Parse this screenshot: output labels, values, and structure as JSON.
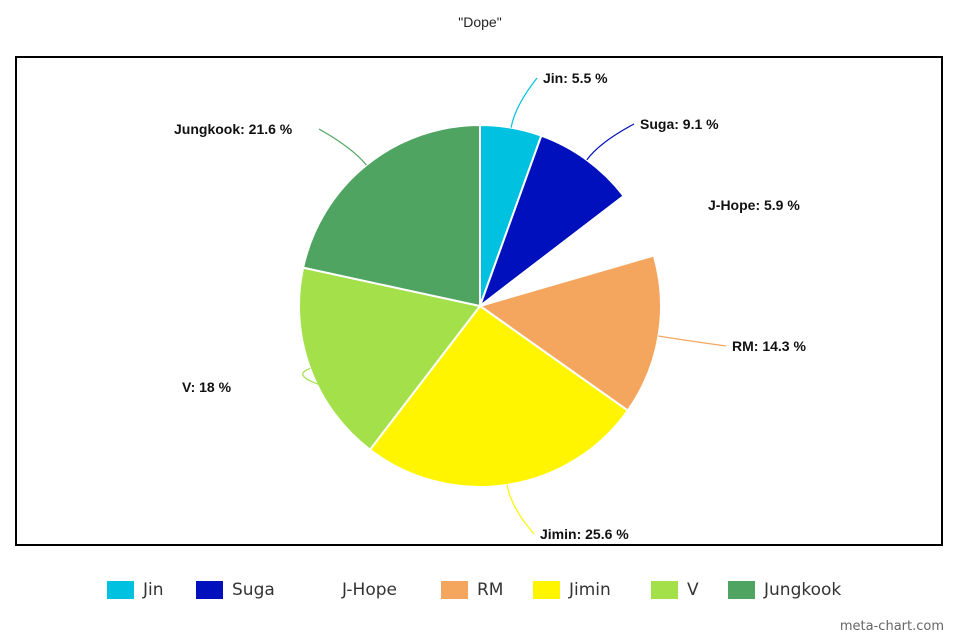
{
  "chart_data": {
    "type": "pie",
    "title": "\"Dope\"",
    "slices": [
      {
        "name": "Jin",
        "value": 5.5,
        "color": "#00C1E0",
        "label": "Jin: 5.5 %"
      },
      {
        "name": "Suga",
        "value": 9.1,
        "color": "#0010BD",
        "label": "Suga: 9.1 %"
      },
      {
        "name": "J-Hope",
        "value": 5.9,
        "color": "#FFFFFF",
        "label": "J-Hope: 5.9 %"
      },
      {
        "name": "RM",
        "value": 14.3,
        "color": "#F5A65E",
        "label": "RM: 14.3 %"
      },
      {
        "name": "Jimin",
        "value": 25.6,
        "color": "#FFF500",
        "label": "Jimin: 25.6 %"
      },
      {
        "name": "V",
        "value": 18,
        "color": "#A3E04A",
        "label": "V: 18 %"
      },
      {
        "name": "Jungkook",
        "value": 21.6,
        "color": "#4FA461",
        "label": "Jungkook: 21.6 %"
      }
    ],
    "legend_position": "bottom",
    "start": "top, clockwise"
  },
  "watermark": "meta-chart.com"
}
